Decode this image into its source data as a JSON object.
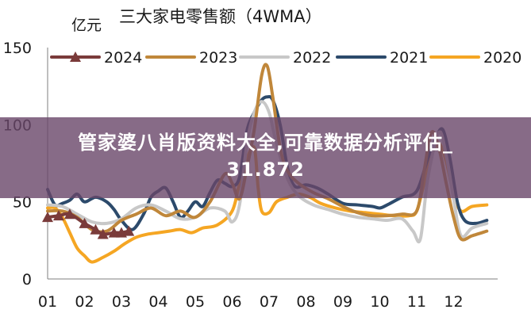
{
  "overlay": {
    "line1": "管家婆八肖版资料大全,可靠数据分析评估_",
    "line2": "31.872"
  },
  "chart_data": {
    "type": "line",
    "title": "三大家电零售额（4WMA）",
    "unit_label": "亿元",
    "xlabel": "",
    "ylabel": "",
    "x_ticks": [
      "01",
      "02",
      "03",
      "04",
      "05",
      "06",
      "07",
      "08",
      "09",
      "10",
      "11",
      "12"
    ],
    "y_ticks": [
      0,
      50,
      100,
      150
    ],
    "ylim": [
      0,
      150
    ],
    "grid": false,
    "legend_position": "top",
    "series": [
      {
        "name": "2024",
        "color": "#7a3b3a",
        "marker": "triangle",
        "points": [
          [
            1.0,
            40
          ],
          [
            1.3,
            41
          ],
          [
            1.6,
            42
          ],
          [
            2.0,
            36
          ],
          [
            2.3,
            32
          ],
          [
            2.5,
            29
          ],
          [
            2.8,
            30
          ],
          [
            3.0,
            30
          ],
          [
            3.2,
            31
          ]
        ]
      },
      {
        "name": "2023",
        "color": "#c0873a",
        "points": [
          [
            1.0,
            44
          ],
          [
            1.4,
            44
          ],
          [
            1.8,
            40
          ],
          [
            2.2,
            32
          ],
          [
            2.6,
            31
          ],
          [
            3.0,
            38
          ],
          [
            3.4,
            42
          ],
          [
            3.8,
            46
          ],
          [
            4.2,
            41
          ],
          [
            4.6,
            44
          ],
          [
            5.0,
            40
          ],
          [
            5.4,
            50
          ],
          [
            5.8,
            68
          ],
          [
            6.0,
            62
          ],
          [
            6.2,
            52
          ],
          [
            6.4,
            72
          ],
          [
            6.6,
            97
          ],
          [
            6.8,
            132
          ],
          [
            6.95,
            138
          ],
          [
            7.1,
            118
          ],
          [
            7.3,
            85
          ],
          [
            7.5,
            70
          ],
          [
            7.8,
            62
          ],
          [
            8.2,
            56
          ],
          [
            8.6,
            52
          ],
          [
            9.0,
            47
          ],
          [
            9.4,
            43
          ],
          [
            9.8,
            41
          ],
          [
            10.2,
            41
          ],
          [
            10.6,
            42
          ],
          [
            11.0,
            44
          ],
          [
            11.2,
            70
          ],
          [
            11.4,
            95
          ],
          [
            11.6,
            85
          ],
          [
            11.8,
            62
          ],
          [
            12.0,
            40
          ],
          [
            12.2,
            26
          ],
          [
            12.5,
            28
          ],
          [
            12.9,
            31
          ]
        ]
      },
      {
        "name": "2022",
        "color": "#c8c8c8",
        "points": [
          [
            1.0,
            48
          ],
          [
            1.4,
            47
          ],
          [
            1.8,
            42
          ],
          [
            2.2,
            37
          ],
          [
            2.6,
            36
          ],
          [
            3.0,
            39
          ],
          [
            3.4,
            46
          ],
          [
            3.8,
            48
          ],
          [
            4.2,
            44
          ],
          [
            4.6,
            39
          ],
          [
            5.0,
            40
          ],
          [
            5.4,
            46
          ],
          [
            5.8,
            44
          ],
          [
            6.0,
            37
          ],
          [
            6.2,
            48
          ],
          [
            6.4,
            88
          ],
          [
            6.6,
            108
          ],
          [
            6.8,
            115
          ],
          [
            7.0,
            108
          ],
          [
            7.2,
            88
          ],
          [
            7.5,
            65
          ],
          [
            7.8,
            54
          ],
          [
            8.2,
            48
          ],
          [
            8.6,
            45
          ],
          [
            9.0,
            42
          ],
          [
            9.4,
            40
          ],
          [
            9.8,
            39
          ],
          [
            10.2,
            38
          ],
          [
            10.6,
            39
          ],
          [
            10.9,
            31
          ],
          [
            11.1,
            26
          ],
          [
            11.3,
            65
          ],
          [
            11.6,
            95
          ],
          [
            11.8,
            80
          ],
          [
            12.0,
            52
          ],
          [
            12.2,
            28
          ],
          [
            12.5,
            33
          ],
          [
            12.9,
            36
          ]
        ]
      },
      {
        "name": "2021",
        "color": "#2c4a6b",
        "points": [
          [
            1.0,
            58
          ],
          [
            1.2,
            48
          ],
          [
            1.4,
            49
          ],
          [
            1.6,
            51
          ],
          [
            1.8,
            55
          ],
          [
            2.0,
            50
          ],
          [
            2.3,
            53
          ],
          [
            2.6,
            50
          ],
          [
            2.8,
            45
          ],
          [
            3.0,
            38
          ],
          [
            3.3,
            32
          ],
          [
            3.6,
            42
          ],
          [
            3.8,
            53
          ],
          [
            4.0,
            57
          ],
          [
            4.2,
            59
          ],
          [
            4.4,
            50
          ],
          [
            4.6,
            40
          ],
          [
            4.8,
            44
          ],
          [
            5.0,
            50
          ],
          [
            5.2,
            47
          ],
          [
            5.4,
            56
          ],
          [
            5.6,
            64
          ],
          [
            5.8,
            62
          ],
          [
            6.0,
            60
          ],
          [
            6.2,
            66
          ],
          [
            6.4,
            96
          ],
          [
            6.6,
            108
          ],
          [
            6.8,
            116
          ],
          [
            6.95,
            118
          ],
          [
            7.1,
            116
          ],
          [
            7.3,
            100
          ],
          [
            7.5,
            72
          ],
          [
            7.7,
            60
          ],
          [
            8.0,
            61
          ],
          [
            8.3,
            59
          ],
          [
            8.6,
            55
          ],
          [
            9.0,
            49
          ],
          [
            9.4,
            48
          ],
          [
            9.8,
            47
          ],
          [
            10.0,
            46
          ],
          [
            10.2,
            48
          ],
          [
            10.6,
            53
          ],
          [
            11.0,
            57
          ],
          [
            11.3,
            78
          ],
          [
            11.5,
            90
          ],
          [
            11.7,
            97
          ],
          [
            11.9,
            78
          ],
          [
            12.1,
            50
          ],
          [
            12.3,
            38
          ],
          [
            12.6,
            36
          ],
          [
            12.9,
            38
          ]
        ]
      },
      {
        "name": "2020",
        "color": "#f5a623",
        "points": [
          [
            1.0,
            46
          ],
          [
            1.2,
            46
          ],
          [
            1.4,
            40
          ],
          [
            1.6,
            30
          ],
          [
            1.8,
            20
          ],
          [
            2.0,
            15
          ],
          [
            2.2,
            11
          ],
          [
            2.5,
            14
          ],
          [
            2.8,
            18
          ],
          [
            3.1,
            23
          ],
          [
            3.4,
            27
          ],
          [
            3.7,
            29
          ],
          [
            4.0,
            30
          ],
          [
            4.3,
            31
          ],
          [
            4.6,
            32
          ],
          [
            4.9,
            30
          ],
          [
            5.2,
            33
          ],
          [
            5.6,
            35
          ],
          [
            6.0,
            44
          ],
          [
            6.2,
            62
          ],
          [
            6.4,
            78
          ],
          [
            6.6,
            85
          ],
          [
            6.7,
            60
          ],
          [
            6.8,
            44
          ],
          [
            7.0,
            43
          ],
          [
            7.2,
            50
          ],
          [
            7.5,
            53
          ],
          [
            7.8,
            55
          ],
          [
            8.1,
            53
          ],
          [
            8.4,
            49
          ],
          [
            8.8,
            46
          ],
          [
            9.2,
            44
          ],
          [
            9.6,
            43
          ],
          [
            10.0,
            42
          ],
          [
            10.4,
            41
          ],
          [
            10.8,
            41
          ],
          [
            11.0,
            44
          ],
          [
            11.2,
            62
          ],
          [
            11.4,
            80
          ],
          [
            11.6,
            88
          ],
          [
            11.8,
            76
          ],
          [
            12.0,
            55
          ],
          [
            12.2,
            44
          ],
          [
            12.5,
            47
          ],
          [
            12.9,
            48
          ]
        ]
      }
    ]
  }
}
